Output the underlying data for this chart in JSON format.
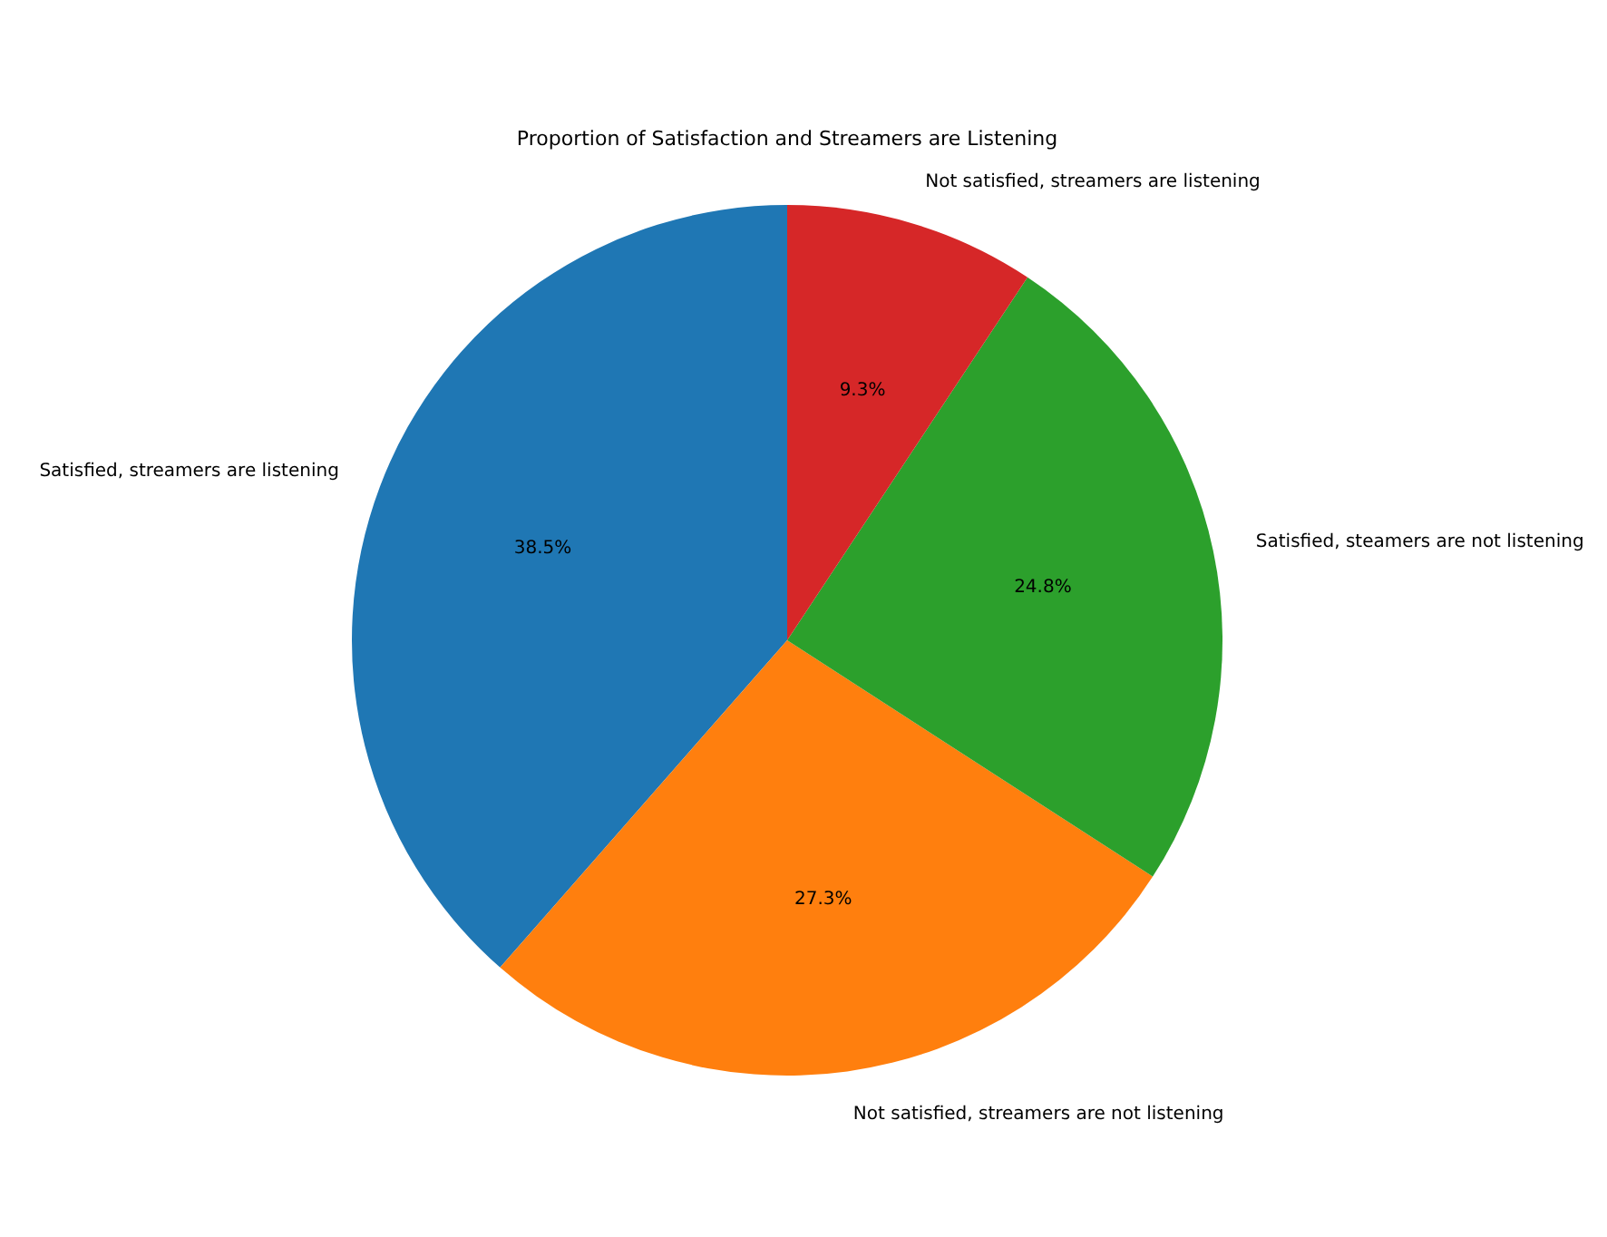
{
  "chart_data": {
    "type": "pie",
    "title": "Proportion of Satisfaction and Streamers are Listening",
    "categories": [
      "Satisfied, streamers are listening",
      "Not satisfied, streamers are not listening",
      "Satisfied, steamers are not listening",
      "Not satisfied, streamers are listening"
    ],
    "values": [
      38.5,
      27.3,
      24.8,
      9.3
    ],
    "colors": [
      "#1f77b4",
      "#ff7f0e",
      "#2ca02c",
      "#d62728"
    ],
    "value_labels": [
      "38.5%",
      "27.3%",
      "24.8%",
      "9.3%"
    ]
  }
}
